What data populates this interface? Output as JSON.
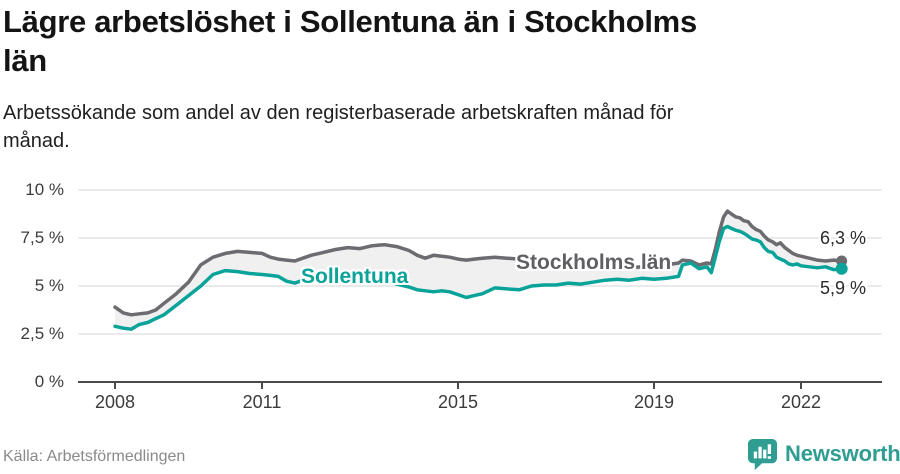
{
  "header": {
    "title": "Lägre arbetslöshet i Sollentuna än i Stockholms\nlän",
    "subtitle": "Arbetssökande som andel av den registerbaserade arbetskraften månad för\nmånad."
  },
  "footer": {
    "source": "Källa: Arbetsförmedlingen",
    "brand": "Newsworthy"
  },
  "colors": {
    "sollentuna_line": "#0aa39a",
    "stockholm_line": "#6b6b70",
    "band_fill": "#f0f0f0",
    "gridline": "#dedede",
    "axis": "#4a4a4a",
    "brand_teal": "#2f9d92"
  },
  "chart_data": {
    "type": "line",
    "title": "Lägre arbetslöshet i Sollentuna än i Stockholms län",
    "subtitle": "Arbetssökande som andel av den registerbaserade arbetskraften månad för månad.",
    "source": "Källa: Arbetsförmedlingen",
    "x_unit": "decimal_year",
    "xlim": [
      2008,
      2023
    ],
    "ylim": [
      0,
      10
    ],
    "grid": true,
    "legend": "inline-labels",
    "yticks": [
      {
        "v": 0,
        "label": "0 %"
      },
      {
        "v": 2.5,
        "label": "2,5 %"
      },
      {
        "v": 5,
        "label": "5 %"
      },
      {
        "v": 7.5,
        "label": "7,5 %"
      },
      {
        "v": 10,
        "label": "10 %"
      }
    ],
    "xticks": [
      {
        "v": 2008,
        "label": "2008"
      },
      {
        "v": 2011,
        "label": "2011"
      },
      {
        "v": 2015,
        "label": "2015"
      },
      {
        "v": 2019,
        "label": "2019"
      },
      {
        "v": 2022,
        "label": "2022"
      }
    ],
    "x": [
      2008.0,
      2008.17,
      2008.33,
      2008.5,
      2008.67,
      2008.83,
      2009.0,
      2009.25,
      2009.5,
      2009.75,
      2010.0,
      2010.25,
      2010.5,
      2010.75,
      2011.0,
      2011.17,
      2011.33,
      2011.5,
      2011.67,
      2011.83,
      2012.0,
      2012.25,
      2012.5,
      2012.75,
      2013.0,
      2013.25,
      2013.5,
      2013.75,
      2014.0,
      2014.17,
      2014.33,
      2014.5,
      2014.67,
      2014.83,
      2015.0,
      2015.17,
      2015.33,
      2015.5,
      2015.75,
      2016.0,
      2016.25,
      2016.5,
      2016.75,
      2017.0,
      2017.25,
      2017.5,
      2017.75,
      2018.0,
      2018.25,
      2018.5,
      2018.75,
      2019.0,
      2019.25,
      2019.5,
      2019.58,
      2019.75,
      2019.92,
      2020.08,
      2020.17,
      2020.25,
      2020.33,
      2020.42,
      2020.5,
      2020.58,
      2020.67,
      2020.75,
      2020.83,
      2020.92,
      2021.0,
      2021.08,
      2021.17,
      2021.25,
      2021.33,
      2021.42,
      2021.5,
      2021.58,
      2021.67,
      2021.75,
      2021.83,
      2021.92,
      2022.0,
      2022.17,
      2022.33,
      2022.5,
      2022.67,
      2022.83
    ],
    "series": [
      {
        "name": "Stockholms län",
        "color": "#6b6b70",
        "end_label": "6,3 %",
        "end_value": 6.3,
        "values": [
          3.9,
          3.6,
          3.5,
          3.55,
          3.6,
          3.75,
          4.1,
          4.6,
          5.2,
          6.1,
          6.5,
          6.7,
          6.8,
          6.75,
          6.7,
          6.5,
          6.4,
          6.35,
          6.3,
          6.45,
          6.6,
          6.75,
          6.9,
          7.0,
          6.95,
          7.1,
          7.15,
          7.05,
          6.85,
          6.6,
          6.45,
          6.6,
          6.55,
          6.5,
          6.4,
          6.35,
          6.4,
          6.45,
          6.5,
          6.45,
          6.4,
          6.35,
          6.3,
          6.25,
          6.2,
          6.1,
          6.05,
          6.0,
          5.95,
          5.95,
          6.0,
          6.0,
          6.1,
          6.2,
          6.35,
          6.3,
          6.1,
          6.2,
          6.15,
          6.9,
          7.8,
          8.6,
          8.9,
          8.75,
          8.6,
          8.55,
          8.4,
          8.35,
          8.1,
          7.95,
          7.85,
          7.6,
          7.4,
          7.3,
          7.15,
          7.25,
          7.0,
          6.85,
          6.7,
          6.6,
          6.55,
          6.45,
          6.35,
          6.3,
          6.35,
          6.3
        ]
      },
      {
        "name": "Sollentuna",
        "color": "#0aa39a",
        "end_label": "5,9 %",
        "end_value": 5.9,
        "values": [
          2.9,
          2.8,
          2.75,
          3.0,
          3.1,
          3.3,
          3.5,
          4.0,
          4.5,
          5.0,
          5.6,
          5.8,
          5.75,
          5.65,
          5.6,
          5.55,
          5.5,
          5.25,
          5.15,
          5.3,
          5.4,
          5.5,
          5.6,
          5.55,
          5.6,
          5.5,
          5.35,
          5.1,
          4.95,
          4.8,
          4.75,
          4.7,
          4.75,
          4.7,
          4.55,
          4.4,
          4.5,
          4.6,
          4.9,
          4.85,
          4.8,
          5.0,
          5.05,
          5.05,
          5.15,
          5.1,
          5.2,
          5.3,
          5.35,
          5.3,
          5.4,
          5.35,
          5.4,
          5.5,
          6.1,
          6.2,
          5.9,
          6.0,
          5.7,
          6.5,
          7.3,
          8.0,
          8.1,
          8.0,
          7.9,
          7.85,
          7.75,
          7.6,
          7.45,
          7.4,
          7.3,
          7.0,
          6.8,
          6.75,
          6.5,
          6.4,
          6.3,
          6.15,
          6.1,
          6.15,
          6.05,
          6.0,
          5.95,
          6.0,
          5.85,
          5.9
        ]
      }
    ]
  }
}
